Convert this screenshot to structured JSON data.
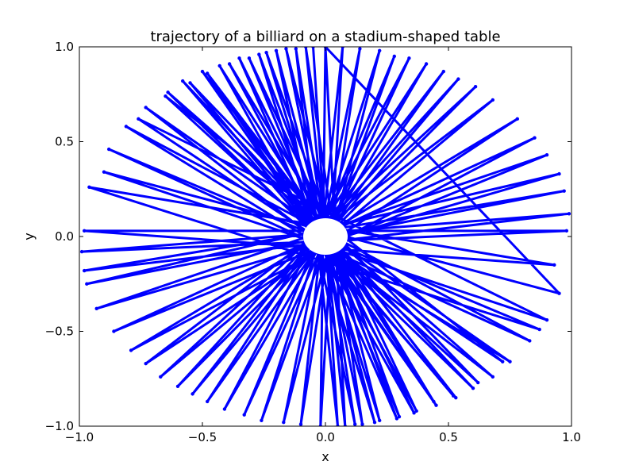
{
  "chart_data": {
    "type": "line",
    "title": "trajectory of a billiard on a stadium-shaped table",
    "xlabel": "x",
    "ylabel": "y",
    "xlim": [
      -1.0,
      1.0
    ],
    "ylim": [
      -1.0,
      1.0
    ],
    "grid": false,
    "x_ticks": [
      -1.0,
      -0.5,
      0.0,
      0.5,
      1.0
    ],
    "y_ticks": [
      -1.0,
      -0.5,
      0.0,
      0.5,
      1.0
    ],
    "x_tick_labels": [
      "−1.0",
      "−0.5",
      "0.0",
      "0.5",
      "1.0"
    ],
    "y_tick_labels": [
      "−1.0",
      "−0.5",
      "0.0",
      "0.5",
      "1.0"
    ],
    "series": [
      {
        "color": "#0000ff",
        "marker": "point",
        "x": [
          0.0,
          0.95,
          -0.9,
          0.9,
          -0.76,
          0.72,
          -0.65,
          0.62,
          -0.55,
          0.52,
          -0.48,
          0.44,
          -0.39,
          0.37,
          -0.31,
          0.3,
          -0.24,
          0.22,
          -0.16,
          0.15,
          -0.08,
          0.08,
          0.0,
          -0.02,
          0.07,
          -0.1,
          0.14,
          -0.17,
          0.22,
          -0.26,
          0.28,
          -0.33,
          0.34,
          -0.41,
          0.41,
          -0.48,
          0.48,
          -0.54,
          0.54,
          -0.6,
          0.61,
          -0.67,
          0.68,
          -0.73,
          0.78,
          -0.79,
          0.85,
          -0.86,
          0.9,
          -0.93,
          0.95,
          -0.97,
          0.97,
          -0.98,
          0.99,
          -0.99,
          0.98,
          -0.98,
          0.93,
          -0.96,
          0.87,
          -0.88,
          0.83,
          -0.81,
          0.75,
          -0.73,
          0.68,
          -0.64,
          0.6,
          -0.58,
          0.53,
          -0.5,
          0.45,
          -0.43,
          0.36,
          -0.35,
          0.29,
          -0.27,
          0.2,
          -0.2,
          0.12,
          -0.12,
          0.05,
          -0.05
        ],
        "y": [
          1.0,
          -0.3,
          0.34,
          -0.44,
          0.62,
          -0.66,
          0.74,
          -0.77,
          0.81,
          -0.84,
          0.86,
          -0.87,
          0.91,
          -0.92,
          0.94,
          -0.95,
          0.97,
          -0.97,
          0.99,
          -0.99,
          1.0,
          -1.0,
          1.0,
          -1.0,
          1.0,
          -0.99,
          0.99,
          -0.98,
          0.98,
          -0.97,
          0.95,
          -0.94,
          0.94,
          -0.91,
          0.91,
          -0.87,
          0.87,
          -0.83,
          0.83,
          -0.79,
          0.79,
          -0.74,
          0.72,
          -0.67,
          0.62,
          -0.6,
          0.52,
          -0.5,
          0.43,
          -0.38,
          0.33,
          -0.25,
          0.24,
          -0.18,
          0.12,
          -0.08,
          0.03,
          0.03,
          -0.15,
          0.26,
          -0.49,
          0.46,
          -0.55,
          0.58,
          -0.66,
          0.68,
          -0.74,
          0.76,
          -0.8,
          0.82,
          -0.85,
          0.87,
          -0.89,
          0.9,
          -0.93,
          0.94,
          -0.96,
          0.96,
          -0.98,
          0.98,
          -0.99,
          0.99,
          -1.0,
          1.0
        ]
      }
    ]
  }
}
